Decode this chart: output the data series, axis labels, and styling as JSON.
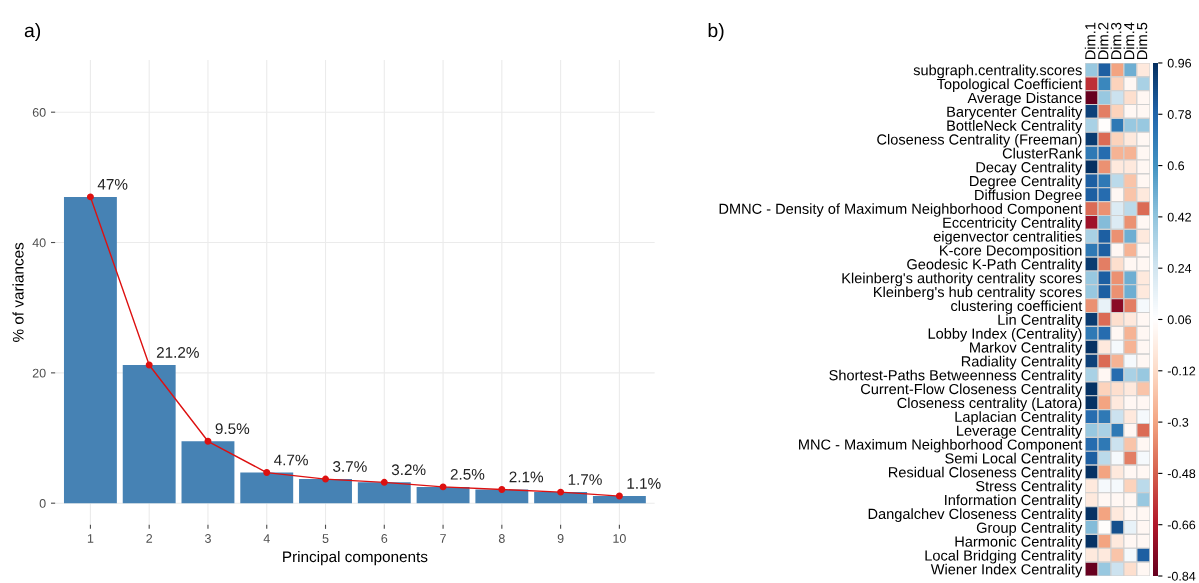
{
  "chart_data": [
    {
      "type": "bar",
      "annotations": [
        "a)"
      ],
      "xlabel": "Principal components",
      "ylabel": "% of variances",
      "categories": [
        "1",
        "2",
        "3",
        "4",
        "5",
        "6",
        "7",
        "8",
        "9",
        "10"
      ],
      "series": [
        {
          "type": "bar",
          "color": "#4682b4",
          "values": [
            47,
            21.2,
            9.5,
            4.7,
            3.7,
            3.2,
            2.5,
            2.1,
            1.7,
            1.1
          ],
          "value_labels": [
            "47%",
            "21.2%",
            "9.5%",
            "4.7%",
            "3.7%",
            "3.2%",
            "2.5%",
            "2.1%",
            "1.7%",
            "1.1%"
          ]
        },
        {
          "type": "line",
          "color": "#dd1111",
          "marker": "circle",
          "values": [
            47,
            21.2,
            9.5,
            4.7,
            3.7,
            3.2,
            2.5,
            2.1,
            1.7,
            1.1
          ]
        }
      ],
      "ylim": [
        -3.3,
        68
      ],
      "yticks": [
        0,
        20,
        40,
        60
      ],
      "grid": true
    },
    {
      "type": "heatmap",
      "annotations": [
        "b)"
      ],
      "categories": [
        "Dim.1",
        "Dim.2",
        "Dim.3",
        "Dim.4",
        "Dim.5"
      ],
      "y_categories": [
        "subgraph.centrality.scores",
        "Topological Coefficient",
        "Average Distance",
        "Barycenter Centrality",
        "BottleNeck Centrality",
        "Closeness Centrality (Freeman)",
        "ClusterRank",
        "Decay Centrality",
        "Degree Centrality",
        "Diffusion Degree",
        "DMNC - Density of Maximum Neighborhood Component",
        "Eccentricity Centrality",
        "eigenvector centralities",
        "K-core Decomposition",
        "Geodesic K-Path Centrality",
        "Kleinberg's authority centrality scores",
        "Kleinberg's hub centrality scores",
        "clustering coefficient",
        "Lin Centrality",
        "Lobby Index (Centrality)",
        "Markov Centrality",
        "Radiality Centrality",
        "Shortest-Paths Betweenness Centrality",
        "Current-Flow Closeness Centrality",
        "Closeness centrality (Latora)",
        "Laplacian Centrality",
        "Leverage Centrality",
        "MNC - Maximum Neighborhood Component",
        "Semi Local Centrality",
        "Residual Closeness Centrality",
        "Stress Centrality",
        "Information Centrality",
        "Dangalchev Closeness Centrality",
        "Group Centrality",
        "Harmonic Centrality",
        "Local Bridging Centrality",
        "Wiener Index Centrality"
      ],
      "cells": [
        [
          0.4,
          0.8,
          -0.3,
          0.5,
          -0.05
        ],
        [
          -0.6,
          0.65,
          -0.15,
          0.02,
          0.35
        ],
        [
          -0.84,
          0.4,
          0.25,
          -0.1,
          0.02
        ],
        [
          0.9,
          -0.4,
          -0.15,
          0.02,
          0.02
        ],
        [
          0.35,
          0.05,
          0.7,
          0.4,
          0.4
        ],
        [
          0.92,
          -0.45,
          -0.15,
          -0.05,
          0.02
        ],
        [
          0.7,
          0.75,
          -0.25,
          -0.25,
          0.02
        ],
        [
          0.96,
          -0.35,
          -0.05,
          -0.05,
          0.02
        ],
        [
          0.8,
          0.7,
          0.3,
          -0.2,
          0.02
        ],
        [
          0.8,
          0.75,
          0.02,
          -0.2,
          -0.05
        ],
        [
          -0.45,
          -0.35,
          0.2,
          0.3,
          -0.45
        ],
        [
          -0.7,
          0.45,
          0.2,
          -0.35,
          0.02
        ],
        [
          0.35,
          0.8,
          -0.35,
          0.5,
          -0.05
        ],
        [
          0.7,
          0.8,
          0.02,
          -0.25,
          0.02
        ],
        [
          0.92,
          -0.4,
          -0.1,
          0.02,
          0.02
        ],
        [
          0.4,
          0.8,
          -0.35,
          0.5,
          -0.05
        ],
        [
          0.4,
          0.8,
          -0.35,
          0.5,
          -0.05
        ],
        [
          -0.35,
          0.15,
          -0.75,
          -0.4,
          0.1
        ],
        [
          0.92,
          -0.45,
          -0.1,
          -0.05,
          0.02
        ],
        [
          0.7,
          0.75,
          0.02,
          -0.25,
          0.02
        ],
        [
          0.95,
          -0.05,
          0.1,
          -0.25,
          0.02
        ],
        [
          0.9,
          -0.45,
          -0.25,
          0.1,
          0.02
        ],
        [
          0.35,
          0.02,
          0.75,
          0.35,
          0.4
        ],
        [
          0.95,
          -0.15,
          -0.1,
          -0.05,
          -0.2
        ],
        [
          0.95,
          -0.3,
          -0.05,
          0.02,
          0.02
        ],
        [
          0.75,
          0.7,
          0.25,
          -0.05,
          0.1
        ],
        [
          0.4,
          0.35,
          0.7,
          0.02,
          -0.45
        ],
        [
          0.75,
          0.7,
          0.25,
          -0.2,
          0.02
        ],
        [
          0.8,
          0.3,
          0.1,
          -0.4,
          0.1
        ],
        [
          0.95,
          -0.3,
          -0.05,
          0.02,
          0.02
        ],
        [
          -0.05,
          0.1,
          0.1,
          -0.15,
          0.3
        ],
        [
          -0.05,
          0.02,
          0.02,
          0.02,
          0.4
        ],
        [
          0.95,
          -0.3,
          -0.05,
          0.02,
          0.02
        ],
        [
          0.45,
          0.05,
          0.85,
          0.15,
          0.02
        ],
        [
          0.95,
          -0.3,
          -0.05,
          0.02,
          0.02
        ],
        [
          -0.05,
          -0.05,
          -0.2,
          0.1,
          0.8
        ],
        [
          -0.84,
          0.4,
          0.25,
          -0.1,
          0.02
        ]
      ],
      "clim": [
        -0.84,
        0.96
      ],
      "cticks": [
        0.96,
        0.78,
        0.6,
        0.42,
        0.24,
        0.06,
        -0.12,
        -0.3,
        -0.48,
        -0.66,
        -0.84
      ]
    }
  ]
}
